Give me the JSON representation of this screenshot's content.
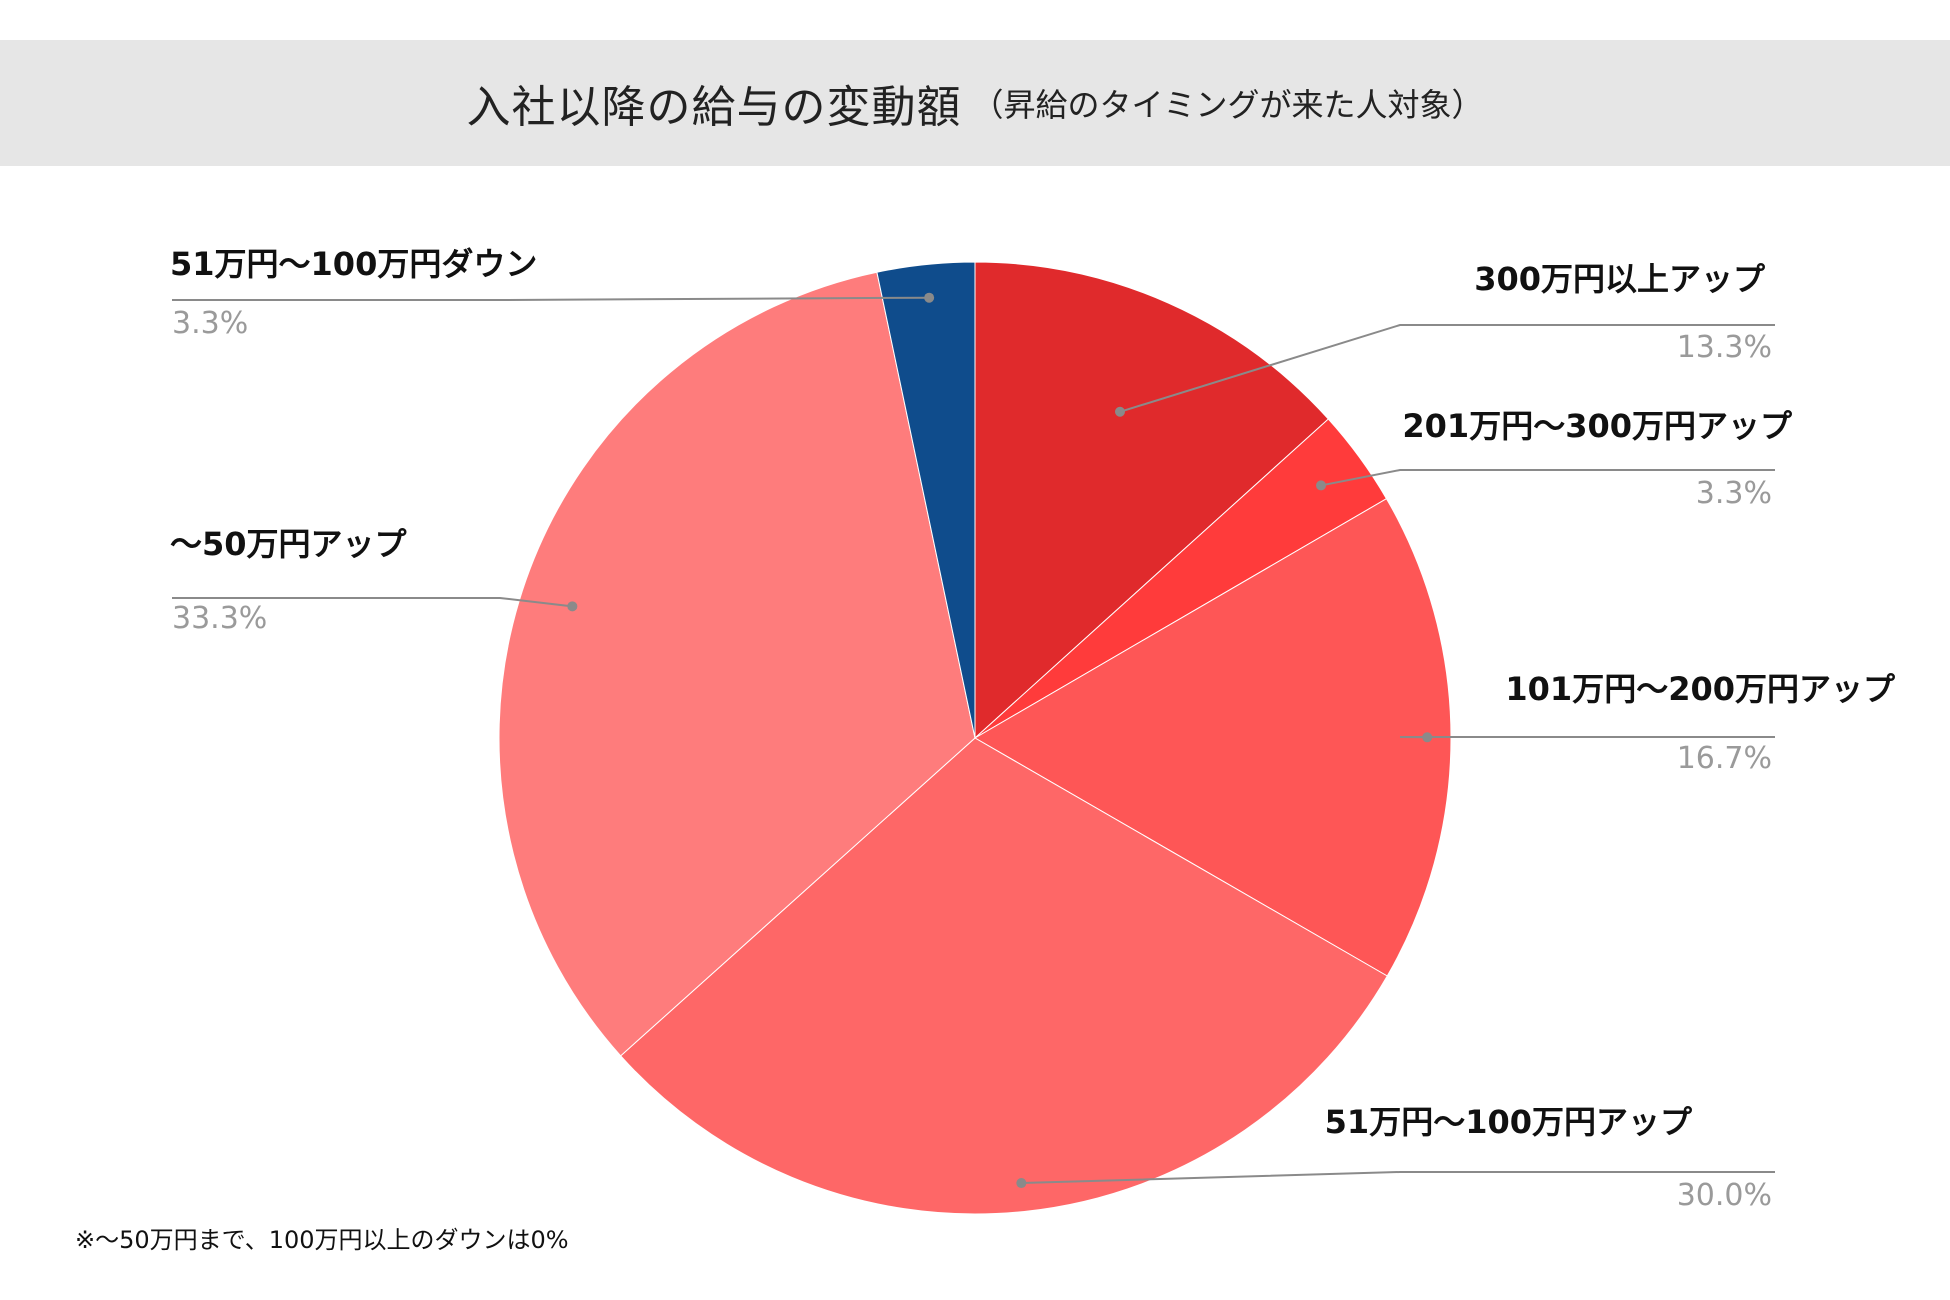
{
  "title": "入社以降の給与の変動額",
  "subtitle": "（昇給のタイミングが来た人対象）",
  "footnote": "※〜50万円まで、100万円以上のダウンは0%",
  "chart_data": {
    "type": "pie",
    "start_angle_deg": 0,
    "direction": "clockwise",
    "slices": [
      {
        "label": "300万円以上アップ",
        "value": 13.3,
        "value_label": "13.3%",
        "color": "#e02a2c"
      },
      {
        "label": "201万円〜300万円アップ",
        "value": 3.3,
        "value_label": "3.3%",
        "color": "#ff3b3b"
      },
      {
        "label": "101万円〜200万円アップ",
        "value": 16.7,
        "value_label": "16.7%",
        "color": "#fe5656"
      },
      {
        "label": "51万円〜100万円アップ",
        "value": 30.0,
        "value_label": "30.0%",
        "color": "#fe6767"
      },
      {
        "label": "〜50万円アップ",
        "value": 33.3,
        "value_label": "33.3%",
        "color": "#fe7c7c"
      },
      {
        "label": "51万円〜100万円ダウン",
        "value": 3.3,
        "value_label": "3.3%",
        "color": "#0f4c8c"
      }
    ]
  }
}
